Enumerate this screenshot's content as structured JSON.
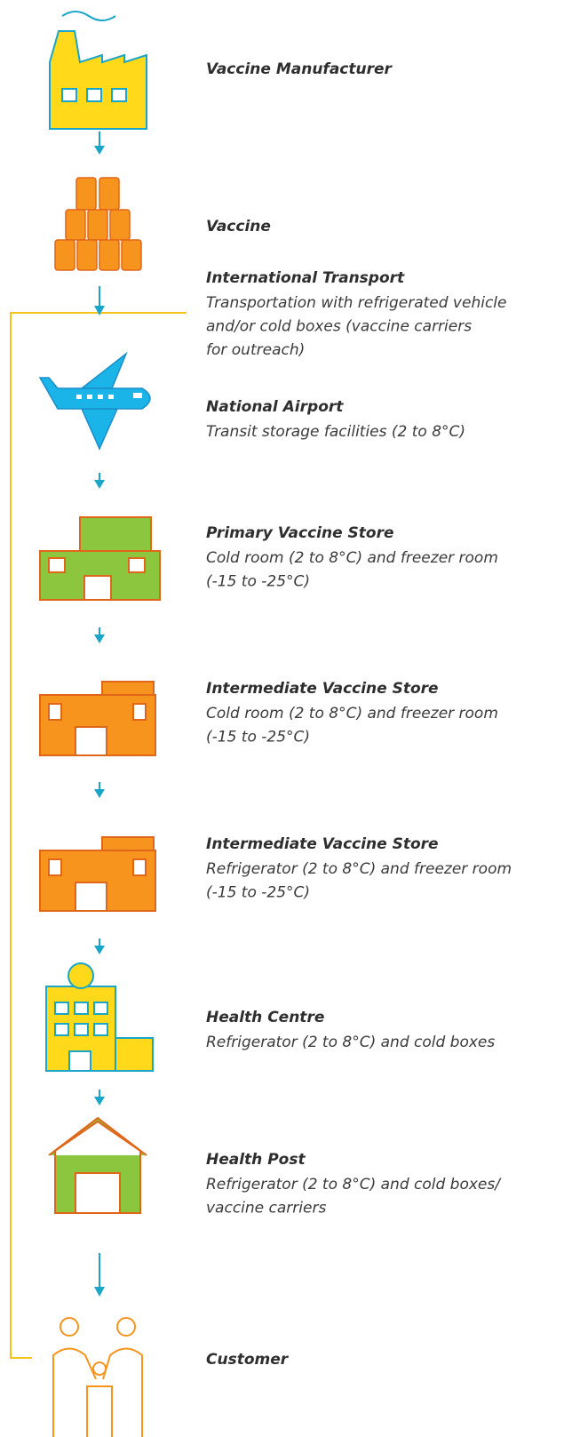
{
  "nodes": [
    {
      "title": "Vaccine Manufacturer",
      "lines": []
    },
    {
      "title": "Vaccine",
      "lines": []
    },
    {
      "title": "International Transport",
      "lines": [
        "Transportation with refrigerated vehicle",
        "and/or cold boxes (vaccine carriers",
        "for outreach)"
      ]
    },
    {
      "title": "National Airport",
      "lines": [
        "Transit storage facilities (2 to 8°C)"
      ]
    },
    {
      "title": "Primary Vaccine Store",
      "lines": [
        "Cold room (2 to 8°C) and freezer room",
        "(-15 to -25°C)"
      ]
    },
    {
      "title": "Intermediate Vaccine Store",
      "lines": [
        "Cold room (2 to 8°C) and freezer room",
        "(-15 to -25°C)"
      ]
    },
    {
      "title": "Intermediate Vaccine Store",
      "lines": [
        "Refrigerator (2 to 8°C) and freezer room",
        "(-15 to -25°C)"
      ]
    },
    {
      "title": "Health Centre",
      "lines": [
        "Refrigerator (2 to 8°C) and cold boxes"
      ]
    },
    {
      "title": "Health Post",
      "lines": [
        "Refrigerator (2 to 8°C) and cold boxes/",
        "vaccine carriers"
      ]
    },
    {
      "title": "Customer",
      "lines": []
    }
  ]
}
